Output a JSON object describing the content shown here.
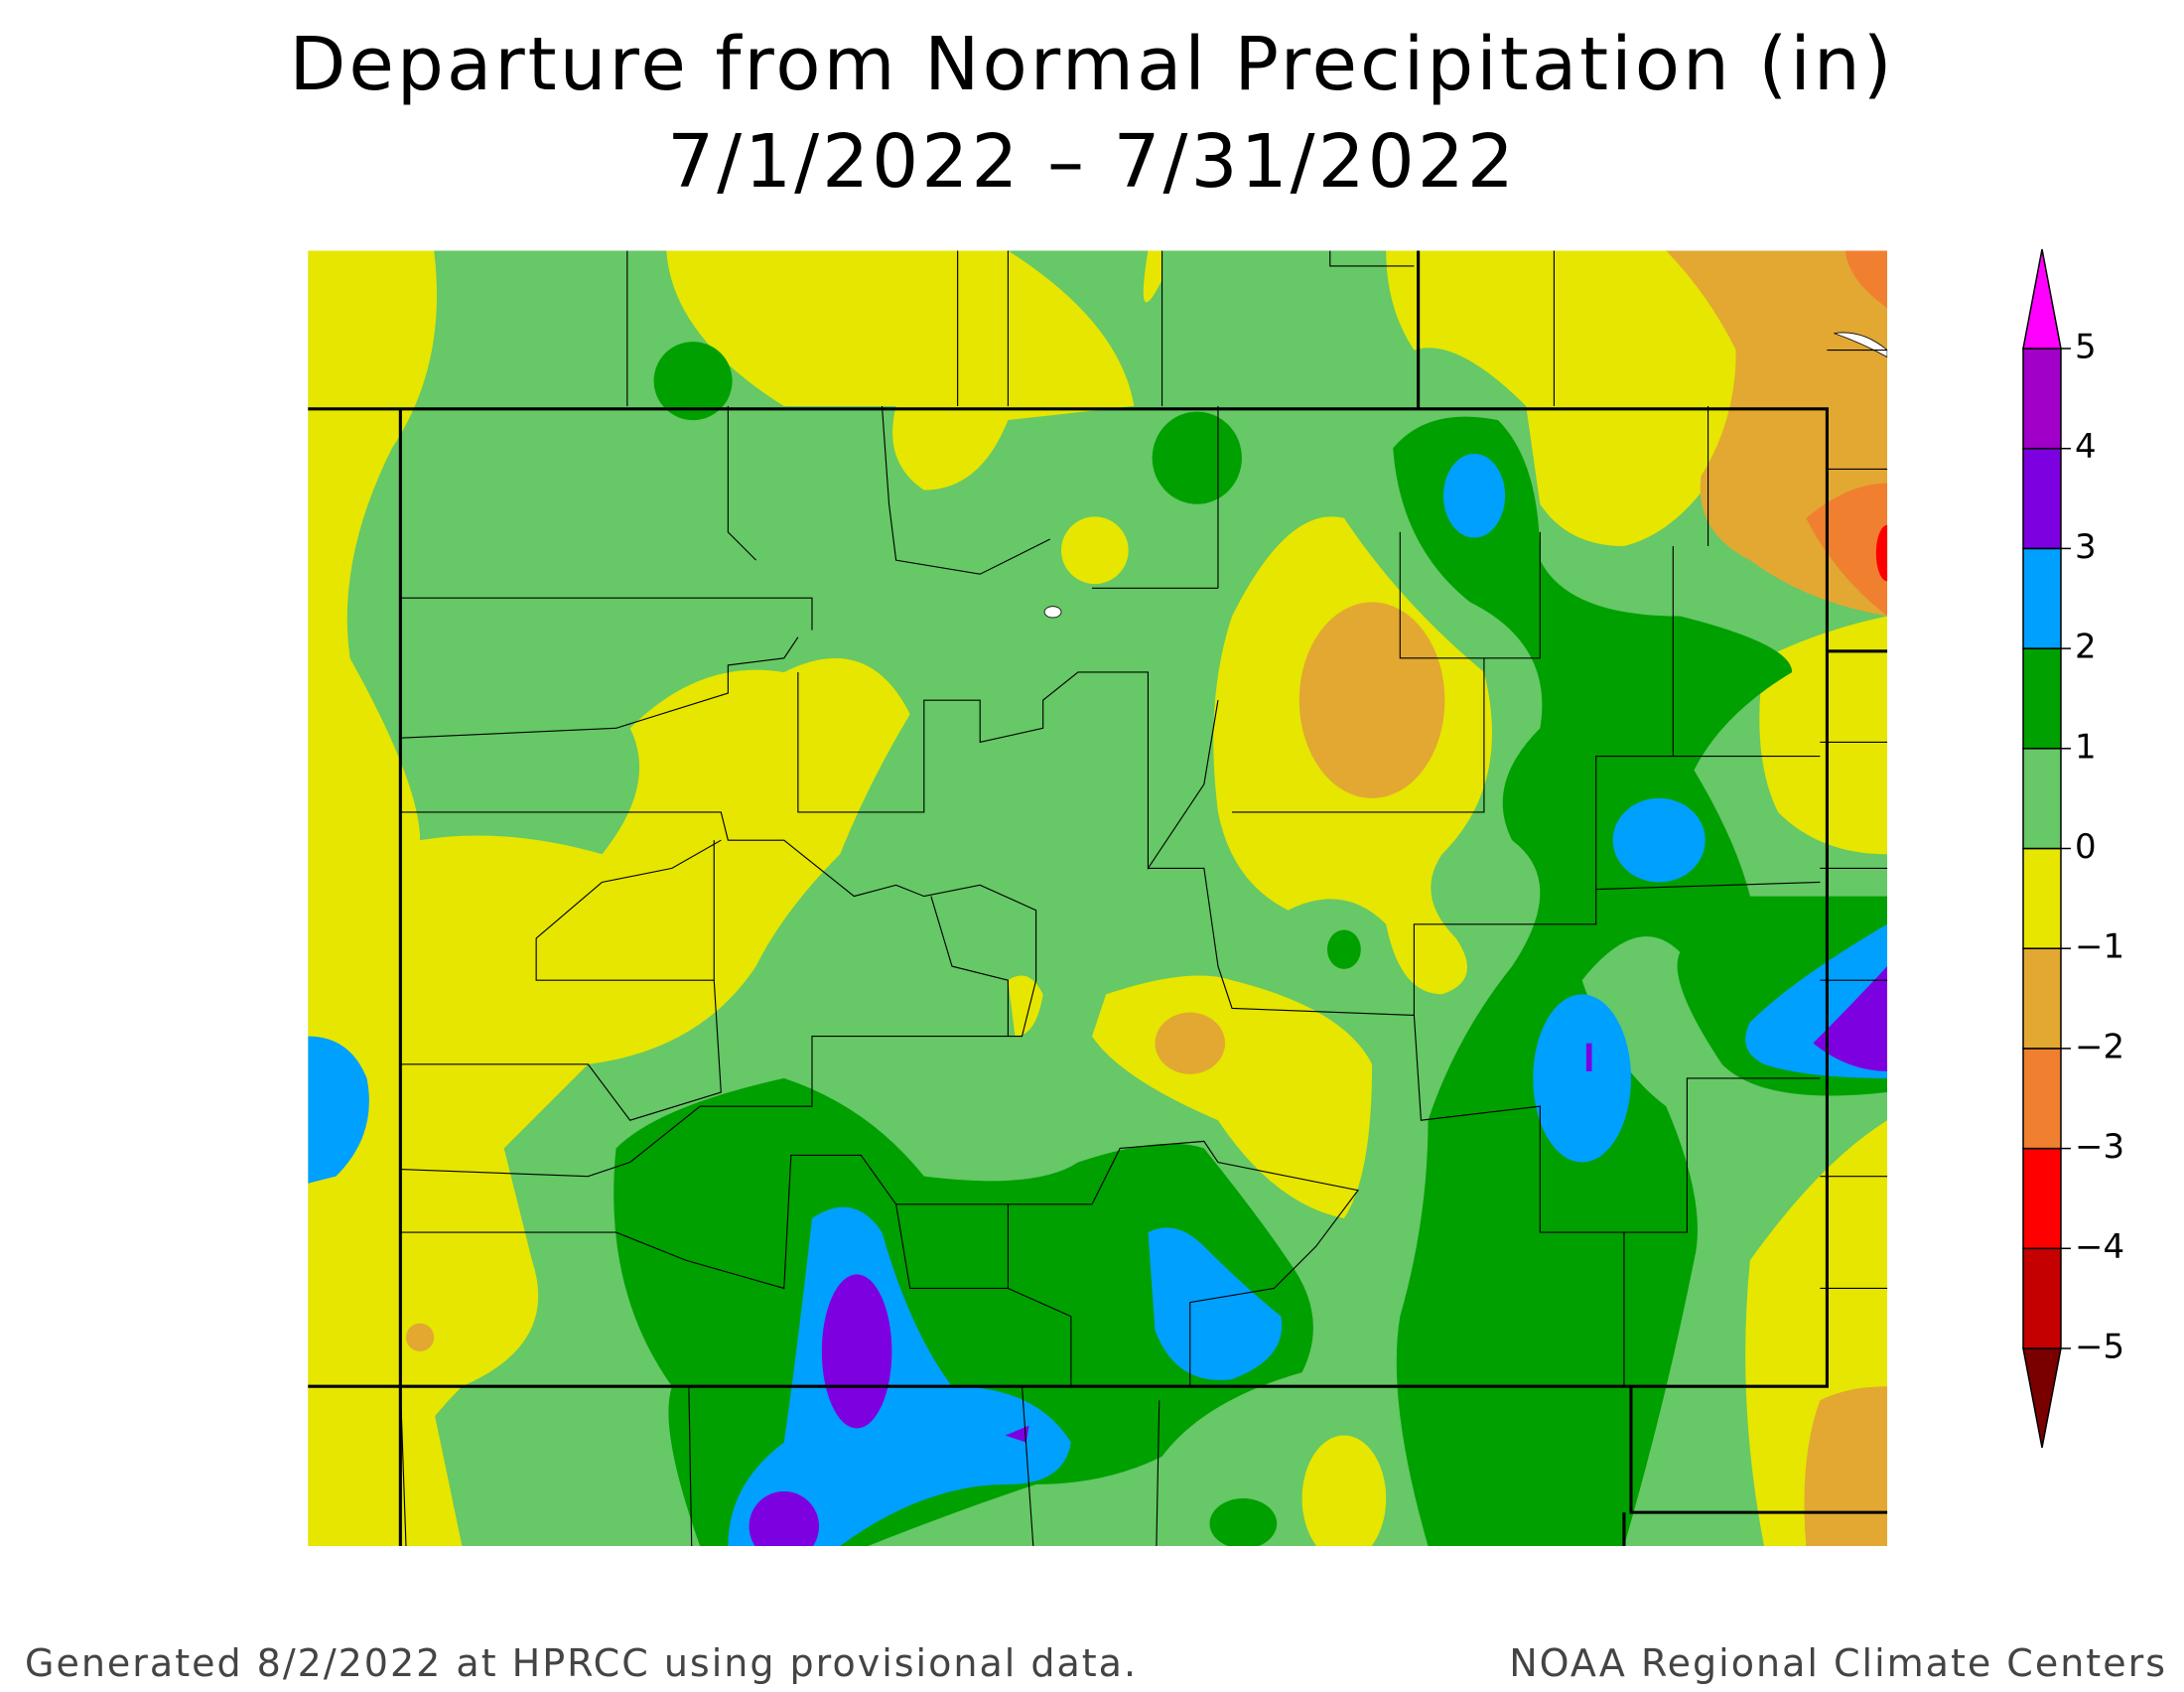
{
  "title": {
    "line1": "Departure from Normal Precipitation (in)",
    "line2": "7/1/2022 – 7/31/2022"
  },
  "colorbar": {
    "levels": [
      {
        "value": -5,
        "label": "−5"
      },
      {
        "value": -4,
        "label": "−4"
      },
      {
        "value": -3,
        "label": "−3"
      },
      {
        "value": -2,
        "label": "−2"
      },
      {
        "value": -1,
        "label": "−1"
      },
      0,
      1,
      2,
      3,
      4,
      5
    ],
    "colors": [
      "#7a0000",
      "#c40000",
      "#ff0000",
      "#f08030",
      "#e2a832",
      "#e6e600",
      "#66c866",
      "#00a000",
      "#00a0ff",
      "#7d00e0",
      "#a000c8",
      "#ff00ff"
    ]
  },
  "footer": {
    "left": "Generated 8/2/2022 at HPRCC using provisional data.",
    "right": "NOAA Regional Climate Centers"
  }
}
